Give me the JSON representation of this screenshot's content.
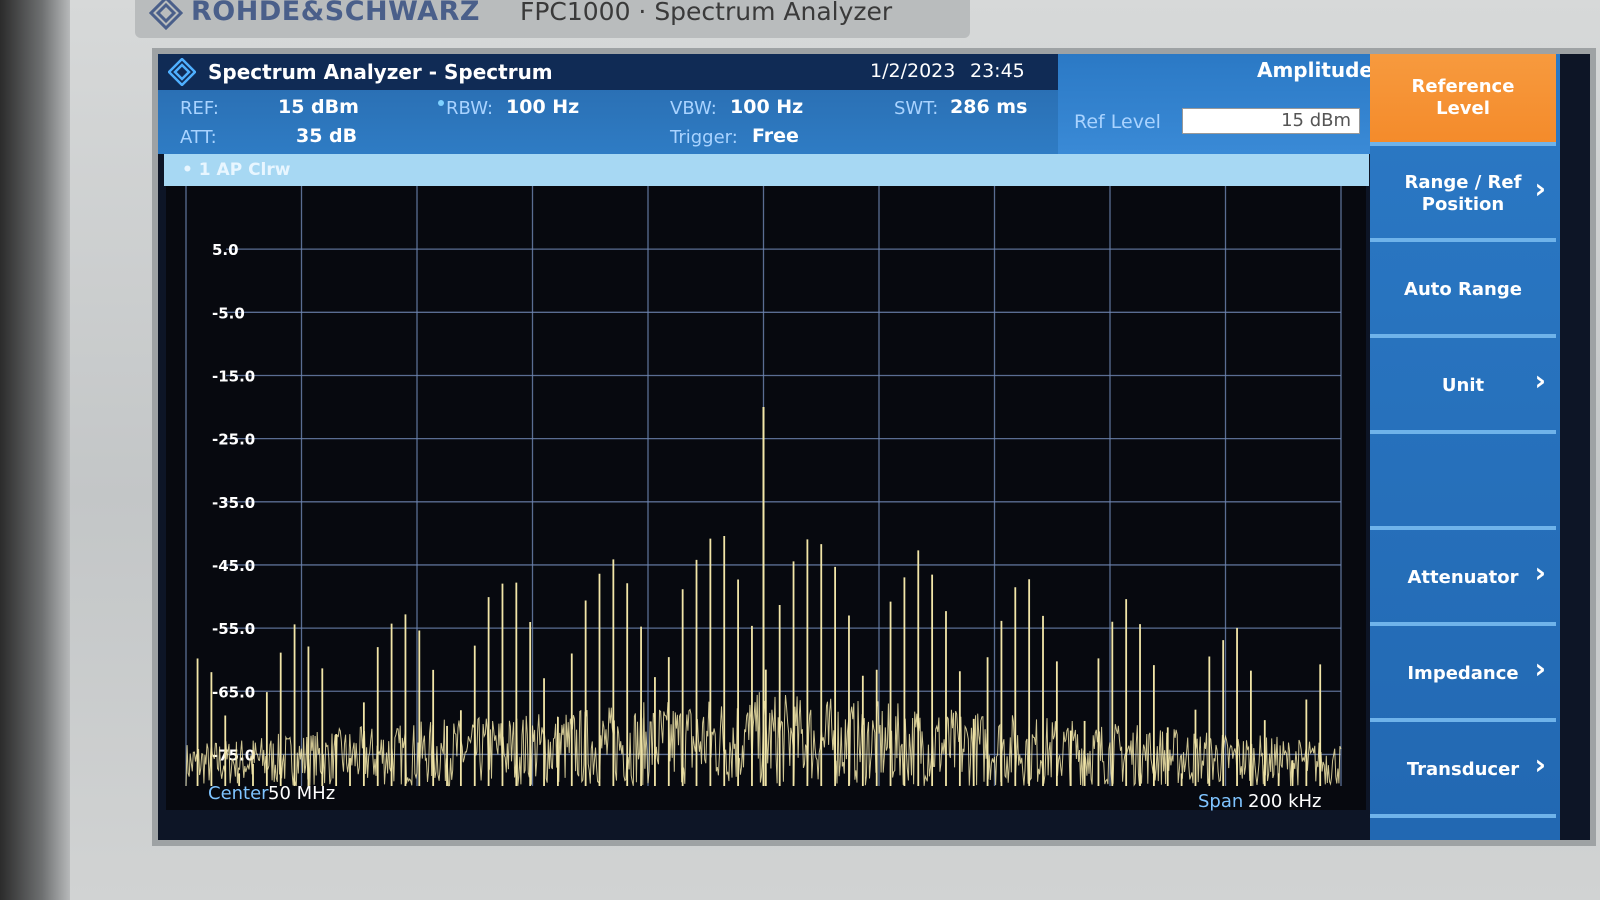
{
  "device": {
    "brand": "ROHDE&SCHWARZ",
    "model": "FPC1000 · Spectrum Analyzer"
  },
  "header": {
    "app_title": "Spectrum Analyzer - Spectrum",
    "date": "1/2/2023",
    "time": "23:45",
    "ref_label": "REF:",
    "ref_value": "15 dBm",
    "att_label": "ATT:",
    "att_value": "35 dB",
    "rbw_label": "RBW:",
    "rbw_value": "100 Hz",
    "vbw_label": "VBW:",
    "vbw_value": "100 Hz",
    "trigger_label": "Trigger:",
    "trigger_value": "Free",
    "swt_label": "SWT:",
    "swt_value": "286 ms"
  },
  "amplitude_panel": {
    "title": "Amplitude",
    "ref_level_label": "Ref Level",
    "ref_level_value": "15 dBm"
  },
  "trace": {
    "label": "• 1 AP Clrw",
    "color": "#f2e6a8"
  },
  "plot": {
    "y_ticks": [
      "5.0",
      "-5.0",
      "-15.0",
      "-25.0",
      "-35.0",
      "-45.0",
      "-55.0",
      "-65.0",
      "-75.0"
    ],
    "center_label": "Center",
    "center_value": "50 MHz",
    "span_label": "Span",
    "span_value": "200 kHz"
  },
  "softkeys": [
    {
      "label": "Reference Level",
      "chevron": false,
      "active": true
    },
    {
      "label": "Range / Ref Position",
      "chevron": true,
      "active": false
    },
    {
      "label": "Auto Range",
      "chevron": false,
      "active": false
    },
    {
      "label": "Unit",
      "chevron": true,
      "active": false
    },
    {
      "label": "",
      "chevron": false,
      "active": false
    },
    {
      "label": "Attenuator",
      "chevron": true,
      "active": false
    },
    {
      "label": "Impedance",
      "chevron": true,
      "active": false
    },
    {
      "label": "Transducer",
      "chevron": true,
      "active": false
    }
  ],
  "chart_data": {
    "type": "line",
    "xlabel": "",
    "ylabel": "",
    "ylim": [
      -80,
      15
    ],
    "y_ticks": [
      5,
      -5,
      -15,
      -25,
      -35,
      -45,
      -55,
      -65,
      -75
    ],
    "x_center_MHz": 50,
    "x_span_kHz": 200,
    "grid": true,
    "series": [
      {
        "x_kHz_offset": [
          -100,
          -90,
          -80,
          -70,
          -60,
          -50,
          -40,
          -30,
          -20,
          -10,
          0,
          10,
          20,
          30,
          40,
          50,
          60,
          70,
          80,
          90,
          100
        ],
        "envelope_dBm": [
          -66,
          -68,
          -58,
          -61,
          -55,
          -58,
          -49,
          -54,
          -39,
          -46,
          -20,
          -46,
          -39,
          -54,
          -49,
          -58,
          -55,
          -61,
          -58,
          -68,
          -66
        ]
      }
    ]
  }
}
